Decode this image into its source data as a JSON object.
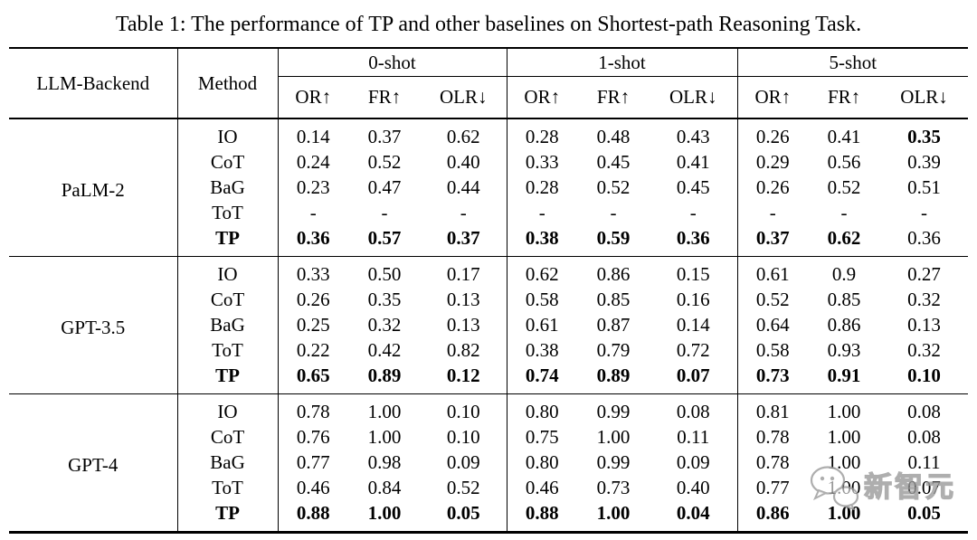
{
  "caption": "Table 1: The performance of TP and other baselines on Shortest-path Reasoning Task.",
  "table": {
    "header": {
      "llm_backend": "LLM-Backend",
      "method": "Method",
      "shot_groups": [
        "0-shot",
        "1-shot",
        "5-shot"
      ],
      "metrics": [
        "OR↑",
        "FR↑",
        "OLR↓"
      ]
    },
    "blocks": [
      {
        "backend": "PaLM-2",
        "rows": [
          {
            "method": "IO",
            "bold_method": false,
            "values": [
              "0.14",
              "0.37",
              "0.62",
              "0.28",
              "0.48",
              "0.43",
              "0.26",
              "0.41",
              "0.35"
            ],
            "bold_values": [
              8
            ]
          },
          {
            "method": "CoT",
            "bold_method": false,
            "values": [
              "0.24",
              "0.52",
              "0.40",
              "0.33",
              "0.45",
              "0.41",
              "0.29",
              "0.56",
              "0.39"
            ],
            "bold_values": []
          },
          {
            "method": "BaG",
            "bold_method": false,
            "values": [
              "0.23",
              "0.47",
              "0.44",
              "0.28",
              "0.52",
              "0.45",
              "0.26",
              "0.52",
              "0.51"
            ],
            "bold_values": []
          },
          {
            "method": "ToT",
            "bold_method": false,
            "values": [
              "-",
              "-",
              "-",
              "-",
              "-",
              "-",
              "-",
              "-",
              "-"
            ],
            "bold_values": []
          },
          {
            "method": "TP",
            "bold_method": true,
            "values": [
              "0.36",
              "0.57",
              "0.37",
              "0.38",
              "0.59",
              "0.36",
              "0.37",
              "0.62",
              "0.36"
            ],
            "bold_values": [
              0,
              1,
              2,
              3,
              4,
              5,
              6,
              7
            ]
          }
        ]
      },
      {
        "backend": "GPT-3.5",
        "rows": [
          {
            "method": "IO",
            "bold_method": false,
            "values": [
              "0.33",
              "0.50",
              "0.17",
              "0.62",
              "0.86",
              "0.15",
              "0.61",
              "0.9",
              "0.27"
            ],
            "bold_values": []
          },
          {
            "method": "CoT",
            "bold_method": false,
            "values": [
              "0.26",
              "0.35",
              "0.13",
              "0.58",
              "0.85",
              "0.16",
              "0.52",
              "0.85",
              "0.32"
            ],
            "bold_values": []
          },
          {
            "method": "BaG",
            "bold_method": false,
            "values": [
              "0.25",
              "0.32",
              "0.13",
              "0.61",
              "0.87",
              "0.14",
              "0.64",
              "0.86",
              "0.13"
            ],
            "bold_values": []
          },
          {
            "method": "ToT",
            "bold_method": false,
            "values": [
              "0.22",
              "0.42",
              "0.82",
              "0.38",
              "0.79",
              "0.72",
              "0.58",
              "0.93",
              "0.32"
            ],
            "bold_values": []
          },
          {
            "method": "TP",
            "bold_method": true,
            "values": [
              "0.65",
              "0.89",
              "0.12",
              "0.74",
              "0.89",
              "0.07",
              "0.73",
              "0.91",
              "0.10"
            ],
            "bold_values": [
              0,
              1,
              2,
              3,
              4,
              5,
              6,
              7,
              8
            ]
          }
        ]
      },
      {
        "backend": "GPT-4",
        "rows": [
          {
            "method": "IO",
            "bold_method": false,
            "values": [
              "0.78",
              "1.00",
              "0.10",
              "0.80",
              "0.99",
              "0.08",
              "0.81",
              "1.00",
              "0.08"
            ],
            "bold_values": []
          },
          {
            "method": "CoT",
            "bold_method": false,
            "values": [
              "0.76",
              "1.00",
              "0.10",
              "0.75",
              "1.00",
              "0.11",
              "0.78",
              "1.00",
              "0.08"
            ],
            "bold_values": []
          },
          {
            "method": "BaG",
            "bold_method": false,
            "values": [
              "0.77",
              "0.98",
              "0.09",
              "0.80",
              "0.99",
              "0.09",
              "0.78",
              "1.00",
              "0.11"
            ],
            "bold_values": []
          },
          {
            "method": "ToT",
            "bold_method": false,
            "values": [
              "0.46",
              "0.84",
              "0.52",
              "0.46",
              "0.73",
              "0.40",
              "0.77",
              "1.00",
              "0.07"
            ],
            "bold_values": []
          },
          {
            "method": "TP",
            "bold_method": true,
            "values": [
              "0.88",
              "1.00",
              "0.05",
              "0.88",
              "1.00",
              "0.04",
              "0.86",
              "1.00",
              "0.05"
            ],
            "bold_values": [
              0,
              1,
              2,
              3,
              4,
              5,
              6,
              7,
              8
            ]
          }
        ]
      }
    ]
  },
  "watermark": {
    "icon": "chat-bubbles-icon",
    "text": "新智元",
    "color": "#9a9a9a"
  },
  "colors": {
    "background": "#ffffff",
    "text": "#000000",
    "rule": "#000000"
  }
}
